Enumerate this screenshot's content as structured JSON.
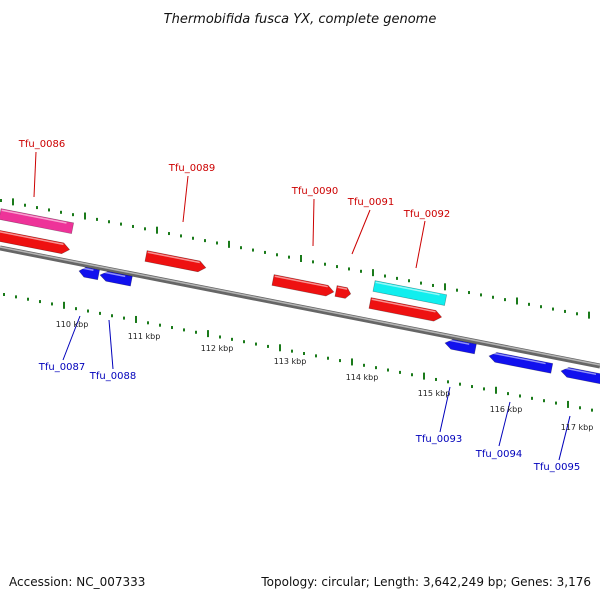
{
  "title": "Thermobifida fusca YX, complete genome",
  "footer": {
    "accession": "Accession: NC_007333",
    "summary": "Topology: circular; Length: 3,642,249 bp; Genes: 3,176"
  },
  "colors": {
    "backbone": "#888888",
    "tick_dots": "#1a7a1a",
    "top_label": "#cc0000",
    "bottom_label": "#0000bb",
    "cds_red": "#ee1111",
    "cds_blue": "#1111ee",
    "cds_pink": "#ee3399",
    "cds_cyan": "#11eeee"
  },
  "scale_labels": [
    "110 kbp",
    "111 kbp",
    "112 kbp",
    "113 kbp",
    "114 kbp",
    "115 kbp",
    "116 kbp",
    "117 kbp"
  ],
  "top_genes": [
    {
      "label": "Tfu_0086",
      "color": "#ee3399"
    },
    {
      "label": "Tfu_0089",
      "color": "#ee1111"
    },
    {
      "label": "Tfu_0090",
      "color": "#ee1111"
    },
    {
      "label": "Tfu_0091",
      "color": "#ee1111"
    },
    {
      "label": "Tfu_0092",
      "color": "#11eeee"
    }
  ],
  "bottom_genes": [
    {
      "label": "Tfu_0087",
      "color": "#1111ee"
    },
    {
      "label": "Tfu_0088",
      "color": "#1111ee"
    },
    {
      "label": "Tfu_0093",
      "color": "#1111ee"
    },
    {
      "label": "Tfu_0094",
      "color": "#1111ee"
    },
    {
      "label": "Tfu_0095",
      "color": "#1111ee"
    }
  ]
}
